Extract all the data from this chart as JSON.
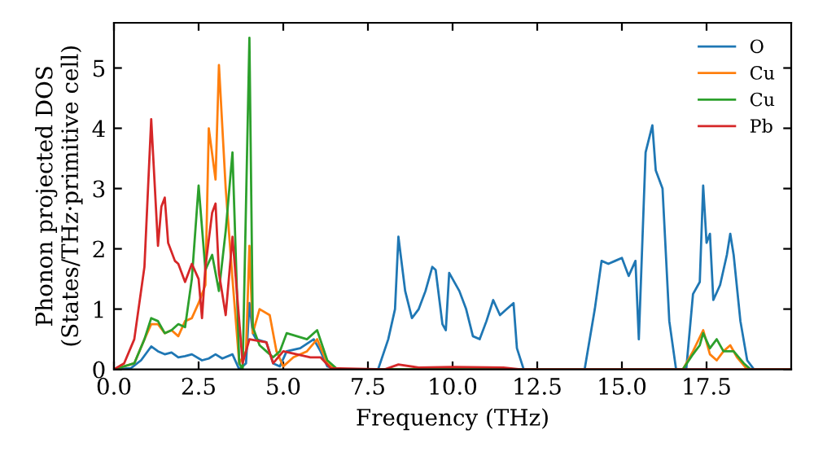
{
  "chart_data": {
    "type": "line",
    "xlabel": "Frequency (THz)",
    "ylabel": "Phonon projected DOS\n(States/THz·primitive cell)",
    "xlim": [
      0,
      20
    ],
    "ylim": [
      0,
      5.75
    ],
    "xticks": [
      {
        "value": 0,
        "label": "0.0"
      },
      {
        "value": 2.5,
        "label": "2.5"
      },
      {
        "value": 5,
        "label": "5.0"
      },
      {
        "value": 7.5,
        "label": "7.5"
      },
      {
        "value": 10,
        "label": "10.0"
      },
      {
        "value": 12.5,
        "label": "12.5"
      },
      {
        "value": 15,
        "label": "15.0"
      },
      {
        "value": 17.5,
        "label": "17.5"
      }
    ],
    "yticks": [
      0,
      1,
      2,
      3,
      4,
      5
    ],
    "grid": false,
    "legend": "top right",
    "series": [
      {
        "name": "O",
        "color": "#1f77b4",
        "x": [
          0,
          0.5,
          0.8,
          1.1,
          1.3,
          1.5,
          1.7,
          1.9,
          2.1,
          2.3,
          2.6,
          2.8,
          3.0,
          3.2,
          3.5,
          3.7,
          3.9,
          4.0,
          4.1,
          4.2,
          4.5,
          4.7,
          4.9,
          5.1,
          5.5,
          5.9,
          6.1,
          6.3,
          6.6,
          7.8,
          8.1,
          8.3,
          8.4,
          8.6,
          8.8,
          9.0,
          9.2,
          9.4,
          9.5,
          9.7,
          9.8,
          9.9,
          10.2,
          10.4,
          10.6,
          10.8,
          11.0,
          11.2,
          11.4,
          11.6,
          11.8,
          11.9,
          12.1,
          13.9,
          14.2,
          14.4,
          14.6,
          14.8,
          15.0,
          15.2,
          15.4,
          15.5,
          15.7,
          15.9,
          16.0,
          16.2,
          16.4,
          16.6,
          16.9,
          17.1,
          17.3,
          17.4,
          17.5,
          17.6,
          17.7,
          17.9,
          18.1,
          18.2,
          18.3,
          18.5,
          18.7,
          18.9,
          20
        ],
        "values": [
          0,
          0.02,
          0.15,
          0.38,
          0.3,
          0.25,
          0.28,
          0.2,
          0.22,
          0.25,
          0.15,
          0.18,
          0.25,
          0.18,
          0.25,
          0,
          0.1,
          1.1,
          0.6,
          0.5,
          0.45,
          0.1,
          0.05,
          0.3,
          0.35,
          0.5,
          0.3,
          0.05,
          0,
          0,
          0.5,
          1.0,
          2.2,
          1.3,
          0.85,
          1.0,
          1.3,
          1.7,
          1.65,
          0.75,
          0.65,
          1.6,
          1.3,
          1.0,
          0.55,
          0.5,
          0.8,
          1.15,
          0.9,
          1.0,
          1.1,
          0.35,
          0,
          0,
          1.0,
          1.8,
          1.75,
          1.8,
          1.85,
          1.55,
          1.8,
          0.5,
          3.6,
          4.05,
          3.3,
          3.0,
          0.8,
          0,
          0,
          1.25,
          1.45,
          3.05,
          2.1,
          2.25,
          1.15,
          1.4,
          1.9,
          2.25,
          1.9,
          0.8,
          0.15,
          0,
          0
        ]
      },
      {
        "name": "Cu",
        "color": "#ff7f0e",
        "x": [
          0,
          0.6,
          0.9,
          1.1,
          1.3,
          1.5,
          1.7,
          1.9,
          2.1,
          2.3,
          2.5,
          2.7,
          2.8,
          3.0,
          3.1,
          3.3,
          3.5,
          3.7,
          3.9,
          4.0,
          4.1,
          4.3,
          4.6,
          4.8,
          5.0,
          5.3,
          5.7,
          6.0,
          6.3,
          6.6,
          16.8,
          17.1,
          17.4,
          17.6,
          17.8,
          18.0,
          18.2,
          18.4,
          18.7,
          20
        ],
        "values": [
          0,
          0.1,
          0.5,
          0.75,
          0.75,
          0.6,
          0.65,
          0.55,
          0.8,
          0.85,
          1.1,
          1.4,
          4.0,
          3.15,
          5.05,
          3.0,
          1.5,
          0.1,
          0.3,
          2.05,
          0.6,
          1.0,
          0.9,
          0.3,
          0.05,
          0.2,
          0.3,
          0.5,
          0.1,
          0,
          0,
          0.3,
          0.65,
          0.25,
          0.15,
          0.3,
          0.4,
          0.2,
          0,
          0
        ]
      },
      {
        "name": "Cu",
        "color": "#2ca02c",
        "x": [
          0,
          0.6,
          0.9,
          1.1,
          1.3,
          1.5,
          1.7,
          1.9,
          2.1,
          2.3,
          2.5,
          2.7,
          2.9,
          3.1,
          3.3,
          3.5,
          3.7,
          3.8,
          4.0,
          4.1,
          4.3,
          4.5,
          4.7,
          4.9,
          5.1,
          5.4,
          5.7,
          6.0,
          6.3,
          6.6,
          16.8,
          17.1,
          17.3,
          17.4,
          17.6,
          17.8,
          18.0,
          18.3,
          18.6,
          18.8,
          20
        ],
        "values": [
          0,
          0.1,
          0.5,
          0.85,
          0.8,
          0.6,
          0.65,
          0.75,
          0.7,
          1.5,
          3.05,
          1.65,
          1.9,
          1.3,
          2.3,
          3.6,
          0.1,
          0,
          5.5,
          0.7,
          0.4,
          0.3,
          0.2,
          0.3,
          0.6,
          0.55,
          0.5,
          0.65,
          0.15,
          0,
          0,
          0.25,
          0.4,
          0.6,
          0.35,
          0.5,
          0.3,
          0.3,
          0.1,
          0,
          0
        ]
      },
      {
        "name": "Pb",
        "color": "#d62728",
        "x": [
          0,
          0.3,
          0.6,
          0.9,
          1.1,
          1.3,
          1.4,
          1.5,
          1.6,
          1.8,
          1.9,
          2.1,
          2.3,
          2.5,
          2.6,
          2.7,
          2.9,
          3.0,
          3.1,
          3.3,
          3.5,
          3.7,
          3.8,
          4.0,
          4.5,
          4.7,
          5.0,
          5.4,
          5.8,
          6.1,
          6.4,
          8.0,
          8.4,
          9.0,
          10.0,
          11.5,
          12.0,
          20
        ],
        "values": [
          0,
          0.1,
          0.5,
          1.7,
          4.15,
          2.05,
          2.7,
          2.85,
          2.1,
          1.8,
          1.75,
          1.45,
          1.75,
          1.5,
          0.85,
          1.7,
          2.6,
          2.75,
          1.6,
          0.9,
          2.2,
          0.8,
          0.1,
          0.5,
          0.45,
          0.1,
          0.3,
          0.25,
          0.2,
          0.2,
          0.02,
          0,
          0.08,
          0.03,
          0.04,
          0.03,
          0,
          0
        ]
      }
    ]
  }
}
